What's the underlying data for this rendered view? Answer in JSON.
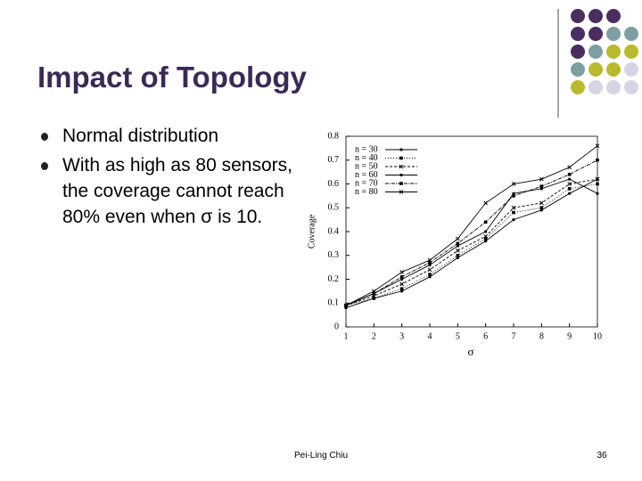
{
  "title": "Impact of Topology",
  "bullets": [
    "Normal distribution",
    "With as high as 80 sensors, the coverage cannot reach 80% even when σ is 10."
  ],
  "chart_data": {
    "type": "line",
    "x_label": "σ",
    "y_label": "Coverage",
    "x": [
      1,
      2,
      3,
      4,
      5,
      6,
      7,
      8,
      9,
      10
    ],
    "xlim": [
      1,
      10
    ],
    "xticks": [
      1,
      2,
      3,
      4,
      5,
      6,
      7,
      8,
      9,
      10
    ],
    "ylim": [
      0,
      0.8
    ],
    "yticks": [
      0,
      0.1,
      0.2,
      0.3,
      0.4,
      0.5,
      0.6,
      0.7,
      0.8
    ],
    "series": [
      {
        "name": "n = 30",
        "color": "#000000",
        "values": [
          0.08,
          0.12,
          0.15,
          0.21,
          0.29,
          0.36,
          0.45,
          0.49,
          0.56,
          0.62
        ]
      },
      {
        "name": "n = 40",
        "color": "#000000",
        "values": [
          0.09,
          0.12,
          0.16,
          0.22,
          0.3,
          0.37,
          0.48,
          0.5,
          0.58,
          0.6
        ]
      },
      {
        "name": "n = 50",
        "color": "#000000",
        "values": [
          0.09,
          0.13,
          0.18,
          0.24,
          0.32,
          0.38,
          0.5,
          0.52,
          0.6,
          0.62
        ]
      },
      {
        "name": "n = 60",
        "color": "#000000",
        "values": [
          0.09,
          0.14,
          0.2,
          0.26,
          0.34,
          0.4,
          0.56,
          0.58,
          0.62,
          0.56
        ]
      },
      {
        "name": "n = 70",
        "color": "#000000",
        "values": [
          0.09,
          0.14,
          0.21,
          0.27,
          0.35,
          0.44,
          0.55,
          0.59,
          0.64,
          0.7
        ]
      },
      {
        "name": "n = 80",
        "color": "#000000",
        "values": [
          0.09,
          0.15,
          0.23,
          0.28,
          0.37,
          0.52,
          0.6,
          0.62,
          0.67,
          0.76
        ]
      }
    ]
  },
  "footer": {
    "author": "Pei-Ling Chiu",
    "page": "36"
  }
}
